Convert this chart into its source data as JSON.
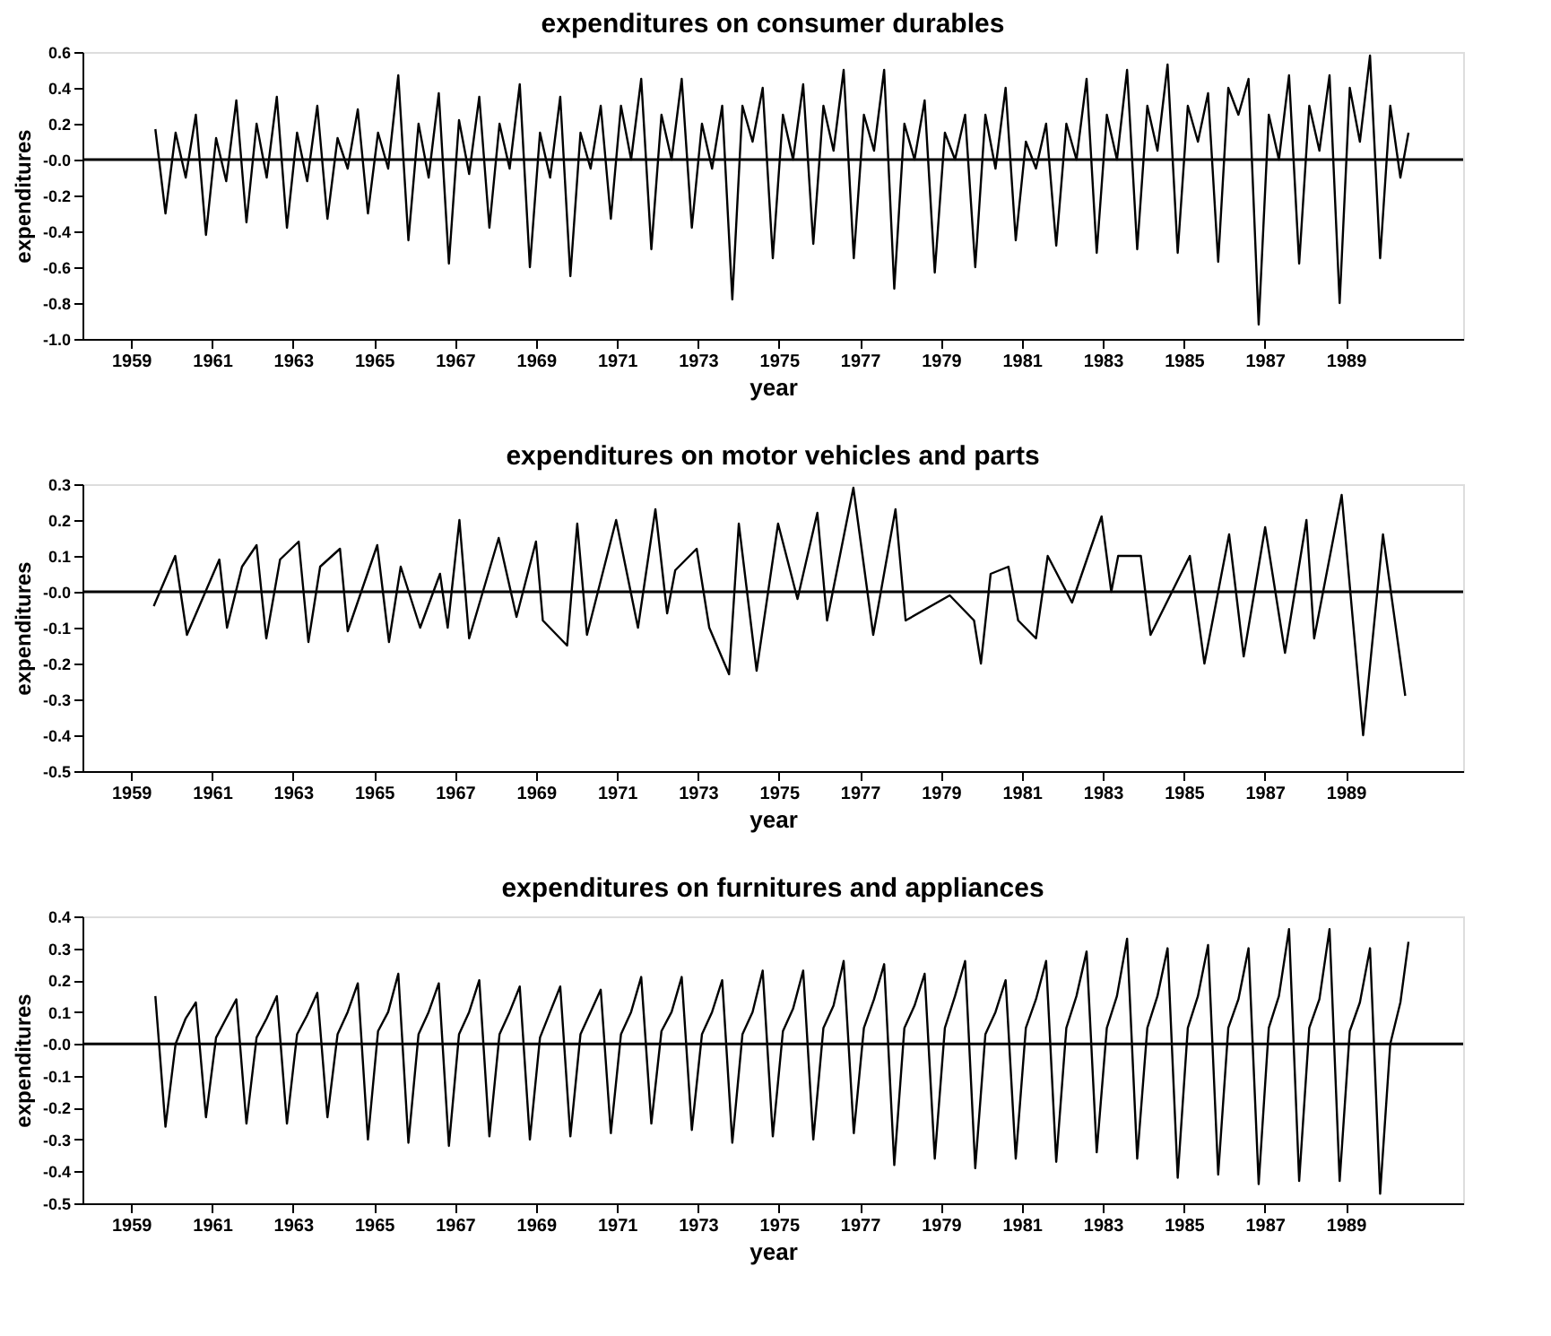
{
  "chart_data": [
    {
      "type": "line",
      "title": "expenditures on consumer durables",
      "xlabel": "year",
      "ylabel": "expenditures",
      "x": [
        1959.6,
        1959.85,
        1960.1,
        1960.35,
        1960.6,
        1960.85,
        1961.1,
        1961.35,
        1961.6,
        1961.85,
        1962.1,
        1962.35,
        1962.6,
        1962.85,
        1963.1,
        1963.35,
        1963.6,
        1963.85,
        1964.1,
        1964.35,
        1964.6,
        1964.85,
        1965.1,
        1965.35,
        1965.6,
        1965.85,
        1966.1,
        1966.35,
        1966.6,
        1966.85,
        1967.1,
        1967.35,
        1967.6,
        1967.85,
        1968.1,
        1968.35,
        1968.6,
        1968.85,
        1969.1,
        1969.35,
        1969.6,
        1969.85,
        1970.1,
        1970.35,
        1970.6,
        1970.85,
        1971.1,
        1971.35,
        1971.6,
        1971.85,
        1972.1,
        1972.35,
        1972.6,
        1972.85,
        1973.1,
        1973.35,
        1973.6,
        1973.85,
        1974.1,
        1974.35,
        1974.6,
        1974.85,
        1975.1,
        1975.35,
        1975.6,
        1975.85,
        1976.1,
        1976.35,
        1976.6,
        1976.85,
        1977.1,
        1977.35,
        1977.6,
        1977.85,
        1978.1,
        1978.35,
        1978.6,
        1978.85,
        1979.1,
        1979.35,
        1979.6,
        1979.85,
        1980.1,
        1980.35,
        1980.6,
        1980.85,
        1981.1,
        1981.35,
        1981.6,
        1981.85,
        1982.1,
        1982.35,
        1982.6,
        1982.85,
        1983.1,
        1983.35,
        1983.6,
        1983.85,
        1984.1,
        1984.35,
        1984.6,
        1984.85,
        1985.1,
        1985.35,
        1985.6,
        1985.85,
        1986.1,
        1986.35,
        1986.6,
        1986.85,
        1987.1,
        1987.35,
        1987.6,
        1987.85,
        1988.1,
        1988.35,
        1988.6,
        1988.85,
        1989.1,
        1989.35,
        1989.6,
        1989.85,
        1990.1,
        1990.35,
        1990.55
      ],
      "series": [
        {
          "color": "#000000",
          "values": [
            0.17,
            -0.3,
            0.15,
            -0.1,
            0.25,
            -0.42,
            0.12,
            -0.12,
            0.33,
            -0.35,
            0.2,
            -0.1,
            0.35,
            -0.38,
            0.15,
            -0.12,
            0.3,
            -0.33,
            0.12,
            -0.05,
            0.28,
            -0.3,
            0.15,
            -0.05,
            0.47,
            -0.45,
            0.2,
            -0.1,
            0.37,
            -0.58,
            0.22,
            -0.08,
            0.35,
            -0.38,
            0.2,
            -0.05,
            0.42,
            -0.6,
            0.15,
            -0.1,
            0.35,
            -0.65,
            0.15,
            -0.05,
            0.3,
            -0.33,
            0.3,
            0.0,
            0.45,
            -0.5,
            0.25,
            0.0,
            0.45,
            -0.38,
            0.2,
            -0.05,
            0.3,
            -0.78,
            0.3,
            0.1,
            0.4,
            -0.55,
            0.25,
            0.0,
            0.42,
            -0.47,
            0.3,
            0.05,
            0.5,
            -0.55,
            0.25,
            0.05,
            0.5,
            -0.72,
            0.2,
            0.0,
            0.33,
            -0.63,
            0.15,
            0.0,
            0.25,
            -0.6,
            0.25,
            -0.05,
            0.4,
            -0.45,
            0.1,
            -0.05,
            0.2,
            -0.48,
            0.2,
            0.0,
            0.45,
            -0.52,
            0.25,
            0.0,
            0.5,
            -0.5,
            0.3,
            0.05,
            0.53,
            -0.52,
            0.3,
            0.1,
            0.37,
            -0.57,
            0.4,
            0.25,
            0.45,
            -0.92,
            0.25,
            0.0,
            0.47,
            -0.58,
            0.3,
            0.05,
            0.47,
            -0.8,
            0.4,
            0.1,
            0.58,
            -0.55,
            0.3,
            -0.1,
            0.15
          ]
        }
      ],
      "xlim": [
        1957.8,
        1991.9
      ],
      "xticks": [
        1959,
        1961,
        1963,
        1965,
        1967,
        1969,
        1971,
        1973,
        1975,
        1977,
        1979,
        1981,
        1983,
        1985,
        1987,
        1989
      ],
      "ylim": [
        -1.0,
        0.6
      ],
      "yticks": [
        {
          "value": -1.0,
          "label": "-1.0"
        },
        {
          "value": -0.8,
          "label": "-0.8"
        },
        {
          "value": -0.6,
          "label": "-0.6"
        },
        {
          "value": -0.4,
          "label": "-0.4"
        },
        {
          "value": -0.2,
          "label": "-0.2"
        },
        {
          "value": 0,
          "label": "-0.0"
        },
        0.2,
        0.4,
        0.6
      ],
      "ref_lines": [
        {
          "axis": "y",
          "value": 0
        }
      ]
    },
    {
      "type": "line",
      "title": "expenditures on motor vehicles and parts",
      "xlabel": "year",
      "ylabel": "expenditures",
      "x": [
        1959.56,
        1960.09,
        1960.38,
        1961.18,
        1961.37,
        1961.74,
        1962.1,
        1962.34,
        1962.68,
        1963.14,
        1963.38,
        1963.67,
        1964.16,
        1964.35,
        1965.08,
        1965.37,
        1965.66,
        1966.14,
        1966.63,
        1966.82,
        1967.11,
        1967.35,
        1968.08,
        1968.52,
        1969.0,
        1969.17,
        1969.77,
        1970.02,
        1970.26,
        1970.98,
        1971.52,
        1971.95,
        1972.24,
        1972.44,
        1972.97,
        1973.28,
        1973.77,
        1974.01,
        1974.45,
        1974.98,
        1975.46,
        1975.95,
        1976.19,
        1976.84,
        1977.33,
        1977.88,
        1978.13,
        1979.22,
        1979.82,
        1979.99,
        1980.23,
        1980.67,
        1980.91,
        1981.35,
        1981.64,
        1982.24,
        1982.97,
        1983.21,
        1983.38,
        1983.94,
        1984.18,
        1985.15,
        1985.51,
        1986.12,
        1986.48,
        1987.01,
        1987.5,
        1988.03,
        1988.22,
        1988.9,
        1989.43,
        1989.92,
        1990.47
      ],
      "series": [
        {
          "color": "#000000",
          "values": [
            -0.04,
            0.1,
            -0.12,
            0.09,
            -0.1,
            0.07,
            0.13,
            -0.13,
            0.09,
            0.14,
            -0.14,
            0.07,
            0.12,
            -0.11,
            0.13,
            -0.14,
            0.07,
            -0.1,
            0.05,
            -0.1,
            0.2,
            -0.13,
            0.15,
            -0.07,
            0.14,
            -0.08,
            -0.15,
            0.19,
            -0.12,
            0.2,
            -0.1,
            0.23,
            -0.06,
            0.06,
            0.12,
            -0.1,
            -0.23,
            0.19,
            -0.22,
            0.19,
            -0.02,
            0.22,
            -0.08,
            0.29,
            -0.12,
            0.23,
            -0.08,
            -0.01,
            -0.08,
            -0.2,
            0.05,
            0.07,
            -0.08,
            -0.13,
            0.1,
            -0.03,
            0.21,
            0.0,
            0.1,
            0.1,
            -0.12,
            0.1,
            -0.2,
            0.16,
            -0.18,
            0.18,
            -0.17,
            0.2,
            -0.13,
            0.27,
            -0.4,
            0.16,
            -0.29
          ]
        }
      ],
      "xlim": [
        1957.8,
        1991.9
      ],
      "xticks": [
        1959,
        1961,
        1963,
        1965,
        1967,
        1969,
        1971,
        1973,
        1975,
        1977,
        1979,
        1981,
        1983,
        1985,
        1987,
        1989
      ],
      "ylim": [
        -0.5,
        0.3
      ],
      "yticks": [
        {
          "value": -0.5,
          "label": "-0.5"
        },
        {
          "value": -0.4,
          "label": "-0.4"
        },
        {
          "value": -0.3,
          "label": "-0.3"
        },
        {
          "value": -0.2,
          "label": "-0.2"
        },
        {
          "value": -0.1,
          "label": "-0.1"
        },
        {
          "value": 0,
          "label": "-0.0"
        },
        0.1,
        0.2,
        0.3
      ],
      "ref_lines": [
        {
          "axis": "y",
          "value": 0
        }
      ]
    },
    {
      "type": "line",
      "title": "expenditures on furnitures and appliances",
      "xlabel": "year",
      "ylabel": "expenditures",
      "x": [
        1959.6,
        1959.85,
        1960.1,
        1960.35,
        1960.6,
        1960.85,
        1961.1,
        1961.35,
        1961.6,
        1961.85,
        1962.1,
        1962.35,
        1962.6,
        1962.85,
        1963.1,
        1963.35,
        1963.6,
        1963.85,
        1964.1,
        1964.35,
        1964.6,
        1964.85,
        1965.1,
        1965.35,
        1965.6,
        1965.85,
        1966.1,
        1966.35,
        1966.6,
        1966.85,
        1967.1,
        1967.35,
        1967.6,
        1967.85,
        1968.1,
        1968.35,
        1968.6,
        1968.85,
        1969.1,
        1969.35,
        1969.6,
        1969.85,
        1970.1,
        1970.35,
        1970.6,
        1970.85,
        1971.1,
        1971.35,
        1971.6,
        1971.85,
        1972.1,
        1972.35,
        1972.6,
        1972.85,
        1973.1,
        1973.35,
        1973.6,
        1973.85,
        1974.1,
        1974.35,
        1974.6,
        1974.85,
        1975.1,
        1975.35,
        1975.6,
        1975.85,
        1976.1,
        1976.35,
        1976.6,
        1976.85,
        1977.1,
        1977.35,
        1977.6,
        1977.85,
        1978.1,
        1978.35,
        1978.6,
        1978.85,
        1979.1,
        1979.35,
        1979.6,
        1979.85,
        1980.1,
        1980.35,
        1980.6,
        1980.85,
        1981.1,
        1981.35,
        1981.6,
        1981.85,
        1982.1,
        1982.35,
        1982.6,
        1982.85,
        1983.1,
        1983.35,
        1983.6,
        1983.85,
        1984.1,
        1984.35,
        1984.6,
        1984.85,
        1985.1,
        1985.35,
        1985.6,
        1985.85,
        1986.1,
        1986.35,
        1986.6,
        1986.85,
        1987.1,
        1987.35,
        1987.6,
        1987.85,
        1988.1,
        1988.35,
        1988.6,
        1988.85,
        1989.1,
        1989.35,
        1989.6,
        1989.85,
        1990.1,
        1990.35,
        1990.55
      ],
      "series": [
        {
          "color": "#000000",
          "values": [
            0.15,
            -0.26,
            0.0,
            0.08,
            0.13,
            -0.23,
            0.02,
            0.08,
            0.14,
            -0.25,
            0.02,
            0.08,
            0.15,
            -0.25,
            0.03,
            0.09,
            0.16,
            -0.23,
            0.03,
            0.1,
            0.19,
            -0.3,
            0.04,
            0.1,
            0.22,
            -0.31,
            0.03,
            0.1,
            0.19,
            -0.32,
            0.03,
            0.1,
            0.2,
            -0.29,
            0.03,
            0.1,
            0.18,
            -0.3,
            0.02,
            0.1,
            0.18,
            -0.29,
            0.03,
            0.1,
            0.17,
            -0.28,
            0.03,
            0.1,
            0.21,
            -0.25,
            0.04,
            0.1,
            0.21,
            -0.27,
            0.03,
            0.1,
            0.2,
            -0.31,
            0.03,
            0.1,
            0.23,
            -0.29,
            0.04,
            0.11,
            0.23,
            -0.3,
            0.05,
            0.12,
            0.26,
            -0.28,
            0.05,
            0.14,
            0.25,
            -0.38,
            0.05,
            0.12,
            0.22,
            -0.36,
            0.05,
            0.15,
            0.26,
            -0.39,
            0.03,
            0.1,
            0.2,
            -0.36,
            0.05,
            0.14,
            0.26,
            -0.37,
            0.05,
            0.15,
            0.29,
            -0.34,
            0.05,
            0.15,
            0.33,
            -0.36,
            0.05,
            0.15,
            0.3,
            -0.42,
            0.05,
            0.15,
            0.31,
            -0.41,
            0.05,
            0.14,
            0.3,
            -0.44,
            0.05,
            0.15,
            0.36,
            -0.43,
            0.05,
            0.14,
            0.36,
            -0.43,
            0.04,
            0.13,
            0.3,
            -0.47,
            0.0,
            0.13,
            0.32
          ]
        }
      ],
      "xlim": [
        1957.8,
        1991.9
      ],
      "xticks": [
        1959,
        1961,
        1963,
        1965,
        1967,
        1969,
        1971,
        1973,
        1975,
        1977,
        1979,
        1981,
        1983,
        1985,
        1987,
        1989
      ],
      "ylim": [
        -0.5,
        0.4
      ],
      "yticks": [
        {
          "value": -0.5,
          "label": "-0.5"
        },
        {
          "value": -0.4,
          "label": "-0.4"
        },
        {
          "value": -0.3,
          "label": "-0.3"
        },
        {
          "value": -0.2,
          "label": "-0.2"
        },
        {
          "value": -0.1,
          "label": "-0.1"
        },
        {
          "value": 0,
          "label": "-0.0"
        },
        0.1,
        0.2,
        0.3,
        0.4
      ],
      "ref_lines": [
        {
          "axis": "y",
          "value": 0
        }
      ]
    }
  ]
}
